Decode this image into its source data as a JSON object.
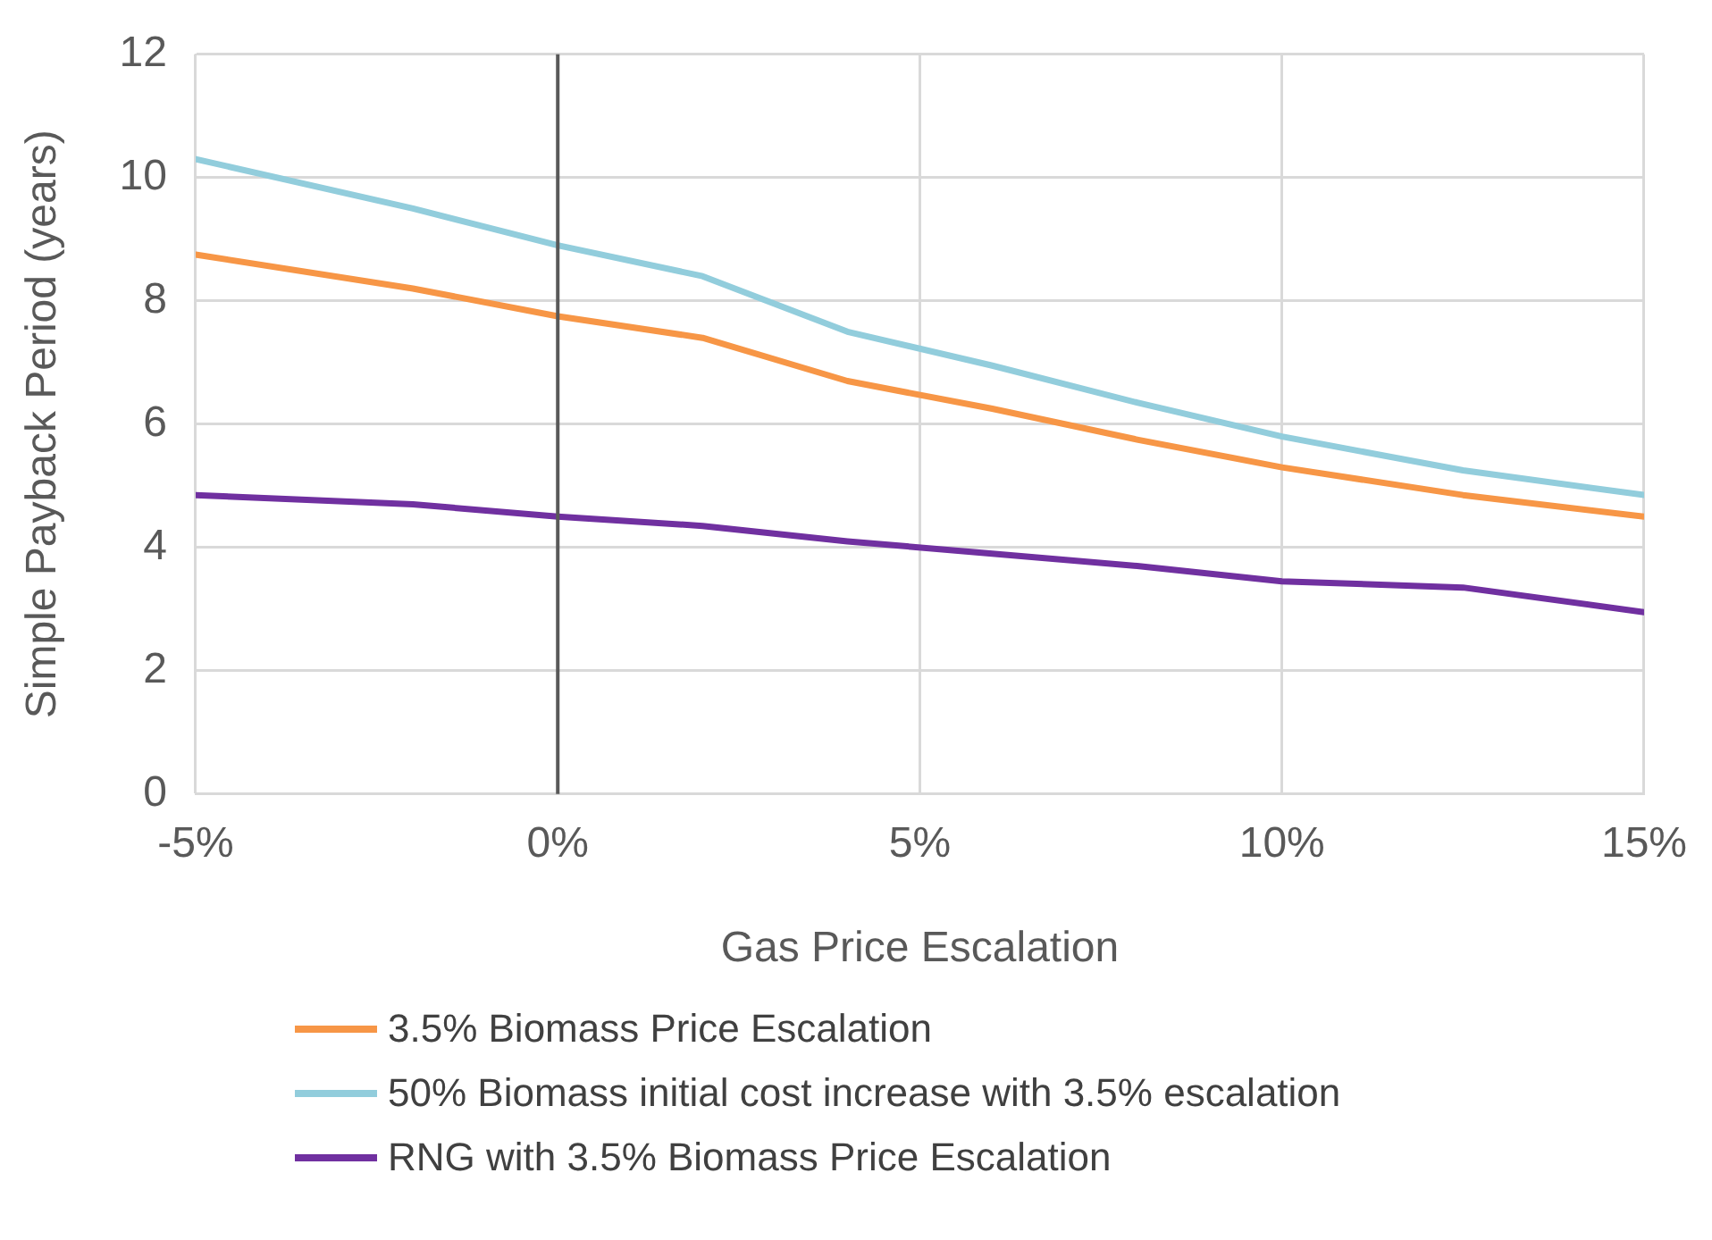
{
  "chart_data": {
    "type": "line",
    "xlabel": "Gas Price Escalation",
    "ylabel": "Simple Payback Period (years)",
    "x": [
      -5,
      -2,
      0,
      2,
      4,
      6,
      8,
      10,
      12.5,
      15
    ],
    "xlim": [
      -5,
      15
    ],
    "xticks": [
      {
        "value": -5,
        "label": "-5%"
      },
      {
        "value": 0,
        "label": "0%"
      },
      {
        "value": 5,
        "label": "5%"
      },
      {
        "value": 10,
        "label": "10%"
      },
      {
        "value": 15,
        "label": "15%"
      }
    ],
    "ylim": [
      0,
      12
    ],
    "yticks": [
      0,
      2,
      4,
      6,
      8,
      10,
      12
    ],
    "series": [
      {
        "name": "3.5% Biomass Price Escalation",
        "color": "#f79646",
        "values": [
          8.75,
          8.2,
          7.75,
          7.4,
          6.7,
          6.25,
          5.75,
          5.3,
          4.85,
          4.5
        ]
      },
      {
        "name": "50% Biomass initial cost increase with 3.5% escalation",
        "color": "#92cddc",
        "values": [
          10.3,
          9.5,
          8.9,
          8.4,
          7.5,
          6.95,
          6.35,
          5.8,
          5.25,
          4.85
        ]
      },
      {
        "name": "RNG with 3.5% Biomass Price Escalation",
        "color": "#7030a0",
        "values": [
          4.85,
          4.7,
          4.5,
          4.35,
          4.1,
          3.9,
          3.7,
          3.45,
          3.35,
          2.95
        ]
      }
    ],
    "ref_lines": [
      {
        "axis": "x",
        "value": 0,
        "color": "#595959"
      }
    ],
    "grid": true,
    "legend": "bottom",
    "marker": "none",
    "line_style": "solid"
  }
}
